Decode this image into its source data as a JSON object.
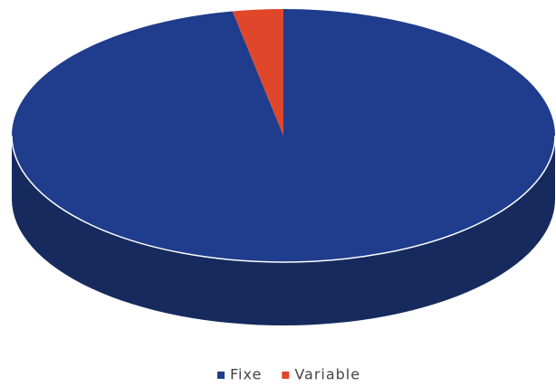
{
  "chart_data": {
    "type": "pie",
    "categories": [
      "Fixe",
      "Variable"
    ],
    "values": [
      97,
      3
    ],
    "colors": [
      "#1f3d8c",
      "#e0472a"
    ],
    "side_color": "#162a5e",
    "legend": "bottom"
  }
}
